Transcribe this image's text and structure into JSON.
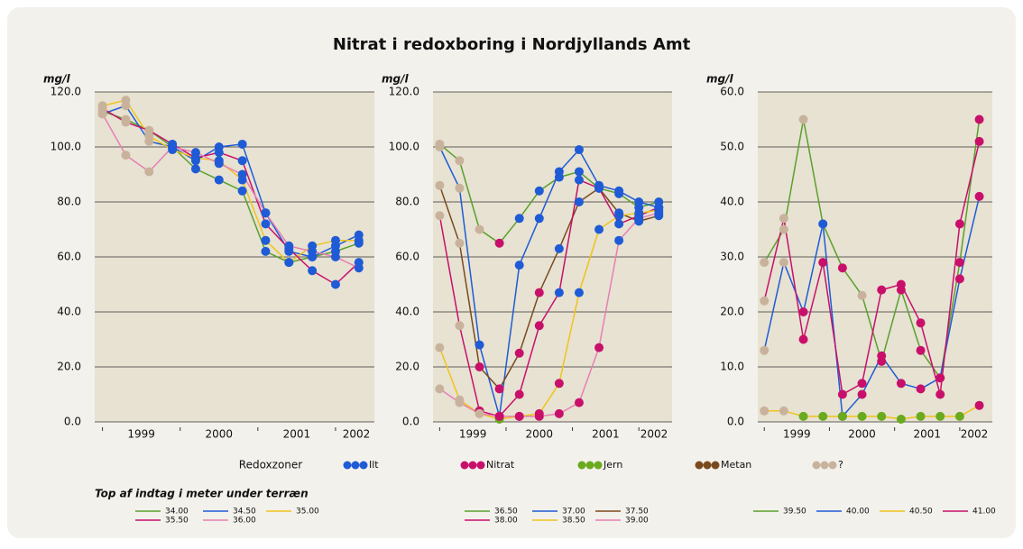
{
  "title": "Nitrat i redoxboring i Nordjyllands Amt",
  "redox_legend": {
    "title": "Redoxzoner",
    "zones": [
      {
        "name": "Ilt",
        "color": "#1f5bd6"
      },
      {
        "name": "Nitrat",
        "color": "#c8106b"
      },
      {
        "name": "Jern",
        "color": "#6aaa1e"
      },
      {
        "name": "Metan",
        "color": "#7a4a1f"
      },
      {
        "name": "?",
        "color": "#c9b29c"
      }
    ]
  },
  "depth_legend_title": "Top af indtag i meter under terræn",
  "chart_data": [
    {
      "type": "line",
      "ylabel": "mg/l",
      "xlim": [
        1998.9,
        2002.5
      ],
      "ylim": [
        0,
        120
      ],
      "yticks": [
        {
          "value": 0,
          "label": "0.0"
        },
        {
          "value": 20,
          "label": "20.0"
        },
        {
          "value": 40,
          "label": "40.0"
        },
        {
          "value": 60,
          "label": "60.0"
        },
        {
          "value": 80,
          "label": "80.0"
        },
        {
          "value": 100,
          "label": "100.0"
        },
        {
          "value": 120,
          "label": "120.0"
        }
      ],
      "xticks": [
        {
          "value": 1999.5,
          "label": "1999"
        },
        {
          "value": 2000.5,
          "label": "2000"
        },
        {
          "value": 2001.5,
          "label": "2001"
        },
        {
          "value": 2002.5,
          "label": "2002"
        }
      ],
      "grid": true,
      "x": [
        1999.0,
        1999.3,
        1999.6,
        1999.9,
        2000.2,
        2000.5,
        2000.8,
        2001.1,
        2001.4,
        2001.7,
        2002.0,
        2002.3
      ],
      "series": [
        {
          "name": "34.00",
          "color": "#5aa02c",
          "values": [
            113,
            110,
            106,
            100,
            92,
            88,
            84,
            62,
            58,
            60,
            62,
            65
          ],
          "zones": [
            "?",
            "?",
            "?",
            "Ilt",
            "Ilt",
            "Ilt",
            "Ilt",
            "Ilt",
            "Ilt",
            "Ilt",
            "Ilt",
            "Ilt"
          ]
        },
        {
          "name": "34.50",
          "color": "#1f5bd6",
          "values": [
            112,
            115,
            102,
            100,
            95,
            100,
            101,
            76,
            62,
            60,
            64,
            68
          ],
          "zones": [
            "?",
            "?",
            "?",
            "Ilt",
            "Ilt",
            "Ilt",
            "Ilt",
            "Ilt",
            "Ilt",
            "Ilt",
            "Ilt",
            "Ilt"
          ]
        },
        {
          "name": "35.00",
          "color": "#f0c419",
          "values": [
            115,
            117,
            104,
            99,
            96,
            95,
            88,
            66,
            58,
            64,
            66,
            66
          ],
          "zones": [
            "?",
            "?",
            "?",
            "Ilt",
            "Ilt",
            "Ilt",
            "Ilt",
            "Ilt",
            "Ilt",
            "Ilt",
            "Ilt",
            "Ilt"
          ]
        },
        {
          "name": "35.50",
          "color": "#c8106b",
          "values": [
            114,
            109,
            106,
            101,
            96,
            98,
            95,
            72,
            63,
            55,
            50,
            58
          ],
          "zones": [
            "?",
            "?",
            "?",
            "Ilt",
            "Ilt",
            "Ilt",
            "Ilt",
            "Ilt",
            "Ilt",
            "Ilt",
            "Ilt",
            "Ilt"
          ]
        },
        {
          "name": "36.00",
          "color": "#e77fb4",
          "values": [
            112,
            97,
            91,
            100,
            98,
            94,
            90,
            76,
            64,
            62,
            60,
            56
          ],
          "zones": [
            "?",
            "?",
            "?",
            "Ilt",
            "Ilt",
            "Ilt",
            "Ilt",
            "Ilt",
            "Ilt",
            "Ilt",
            "Ilt",
            "Ilt"
          ]
        }
      ]
    },
    {
      "type": "line",
      "ylabel": "mg/l",
      "xlim": [
        1998.9,
        2002.5
      ],
      "ylim": [
        0,
        120
      ],
      "yticks": [
        {
          "value": 0,
          "label": "0.0"
        },
        {
          "value": 20,
          "label": "20.0"
        },
        {
          "value": 40,
          "label": "40.0"
        },
        {
          "value": 60,
          "label": "60.0"
        },
        {
          "value": 80,
          "label": "80.0"
        },
        {
          "value": 100,
          "label": "100.0"
        },
        {
          "value": 120,
          "label": "120.0"
        }
      ],
      "xticks": [
        {
          "value": 1999.5,
          "label": "1999"
        },
        {
          "value": 2000.5,
          "label": "2000"
        },
        {
          "value": 2001.5,
          "label": "2001"
        },
        {
          "value": 2002.5,
          "label": "2002"
        }
      ],
      "grid": true,
      "x": [
        1999.0,
        1999.3,
        1999.6,
        1999.9,
        2000.2,
        2000.5,
        2000.8,
        2001.1,
        2001.4,
        2001.7,
        2002.0,
        2002.3
      ],
      "series": [
        {
          "name": "36.50",
          "color": "#5aa02c",
          "values": [
            101,
            95,
            70,
            65,
            74,
            84,
            89,
            91,
            85,
            83,
            78,
            80
          ],
          "zones": [
            "?",
            "?",
            "?",
            "Nitrat",
            "Ilt",
            "Ilt",
            "Ilt",
            "Ilt",
            "Ilt",
            "Ilt",
            "Ilt",
            "Ilt"
          ]
        },
        {
          "name": "37.00",
          "color": "#1f5bd6",
          "values": [
            100,
            85,
            28,
            2,
            57,
            74,
            91,
            99,
            86,
            84,
            80,
            78
          ],
          "zones": [
            "?",
            "?",
            "Ilt",
            "Ilt",
            "Ilt",
            "Ilt",
            "Ilt",
            "Ilt",
            "Ilt",
            "Ilt",
            "Ilt",
            "Ilt"
          ]
        },
        {
          "name": "37.50",
          "color": "#7a4a1f",
          "values": [
            86,
            65,
            20,
            12,
            25,
            47,
            63,
            80,
            85,
            76,
            73,
            75
          ],
          "zones": [
            "?",
            "?",
            "Nitrat",
            "Nitrat",
            "Nitrat",
            "Nitrat",
            "Ilt",
            "Ilt",
            "Ilt",
            "Ilt",
            "Ilt",
            "Ilt"
          ]
        },
        {
          "name": "38.00",
          "color": "#c8106b",
          "values": [
            75,
            35,
            4,
            2,
            10,
            35,
            47,
            88,
            85,
            72,
            75,
            78
          ],
          "zones": [
            "?",
            "?",
            "Nitrat",
            "Nitrat",
            "Nitrat",
            "Nitrat",
            "Ilt",
            "Ilt",
            "Ilt",
            "Ilt",
            "Ilt",
            "Ilt"
          ]
        },
        {
          "name": "38.50",
          "color": "#f0c419",
          "values": [
            27,
            8,
            3,
            1,
            2,
            3,
            14,
            47,
            70,
            75,
            76,
            77
          ],
          "zones": [
            "?",
            "?",
            "?",
            "Jern",
            "Nitrat",
            "Nitrat",
            "Nitrat",
            "Ilt",
            "Ilt",
            "Ilt",
            "Ilt",
            "Ilt"
          ]
        },
        {
          "name": "39.00",
          "color": "#e77fb4",
          "values": [
            12,
            7,
            3,
            2,
            2,
            2,
            3,
            7,
            27,
            66,
            74,
            76
          ],
          "zones": [
            "?",
            "?",
            "?",
            "Nitrat",
            "Nitrat",
            "Nitrat",
            "Nitrat",
            "Nitrat",
            "Nitrat",
            "Ilt",
            "Ilt",
            "Ilt"
          ]
        }
      ]
    },
    {
      "type": "line",
      "ylabel": "mg/l",
      "xlim": [
        1998.9,
        2002.5
      ],
      "ylim": [
        0,
        60
      ],
      "yticks": [
        {
          "value": 0,
          "label": "0.0"
        },
        {
          "value": 10,
          "label": "10.0"
        },
        {
          "value": 20,
          "label": "20.0"
        },
        {
          "value": 30,
          "label": "30.0"
        },
        {
          "value": 40,
          "label": "40.0"
        },
        {
          "value": 50,
          "label": "50.0"
        },
        {
          "value": 60,
          "label": "60.0"
        }
      ],
      "xticks": [
        {
          "value": 1999.5,
          "label": "1999"
        },
        {
          "value": 2000.5,
          "label": "2000"
        },
        {
          "value": 2001.5,
          "label": "2001"
        },
        {
          "value": 2002.5,
          "label": "2002"
        }
      ],
      "grid": true,
      "x": [
        1999.0,
        1999.3,
        1999.6,
        1999.9,
        2000.2,
        2000.5,
        2000.8,
        2001.1,
        2001.4,
        2001.7,
        2002.0,
        2002.3
      ],
      "series": [
        {
          "name": "39.50",
          "color": "#5aa02c",
          "values": [
            29,
            35,
            55,
            36,
            28,
            23,
            11,
            24,
            13,
            8,
            29,
            55
          ],
          "zones": [
            "?",
            "?",
            "?",
            "?",
            "Nitrat",
            "?",
            "Nitrat",
            "Nitrat",
            "Nitrat",
            "Nitrat",
            "Nitrat",
            "Nitrat"
          ]
        },
        {
          "name": "40.00",
          "color": "#1f5bd6",
          "values": [
            13,
            29,
            20,
            36,
            1,
            5,
            12,
            7,
            6,
            8,
            26,
            41
          ],
          "zones": [
            "?",
            "?",
            "Nitrat",
            "Ilt",
            "Ilt",
            "Nitrat",
            "Nitrat",
            "Nitrat",
            "Nitrat",
            "Nitrat",
            "Nitrat",
            "Nitrat"
          ]
        },
        {
          "name": "40.50",
          "color": "#f0c419",
          "values": [
            2,
            2,
            1,
            1,
            1,
            1,
            1,
            0.5,
            1,
            1,
            1,
            3
          ],
          "zones": [
            "?",
            "?",
            "Jern",
            "Jern",
            "Jern",
            "Jern",
            "Jern",
            "Jern",
            "Jern",
            "Jern",
            "Jern",
            "Nitrat"
          ]
        },
        {
          "name": "41.00",
          "color": "#c8106b",
          "values": [
            22,
            37,
            15,
            29,
            5,
            7,
            24,
            25,
            18,
            5,
            36,
            51
          ],
          "zones": [
            "?",
            "?",
            "Nitrat",
            "Nitrat",
            "Nitrat",
            "Nitrat",
            "Nitrat",
            "Nitrat",
            "Nitrat",
            "Nitrat",
            "Nitrat",
            "Nitrat"
          ]
        }
      ]
    }
  ]
}
